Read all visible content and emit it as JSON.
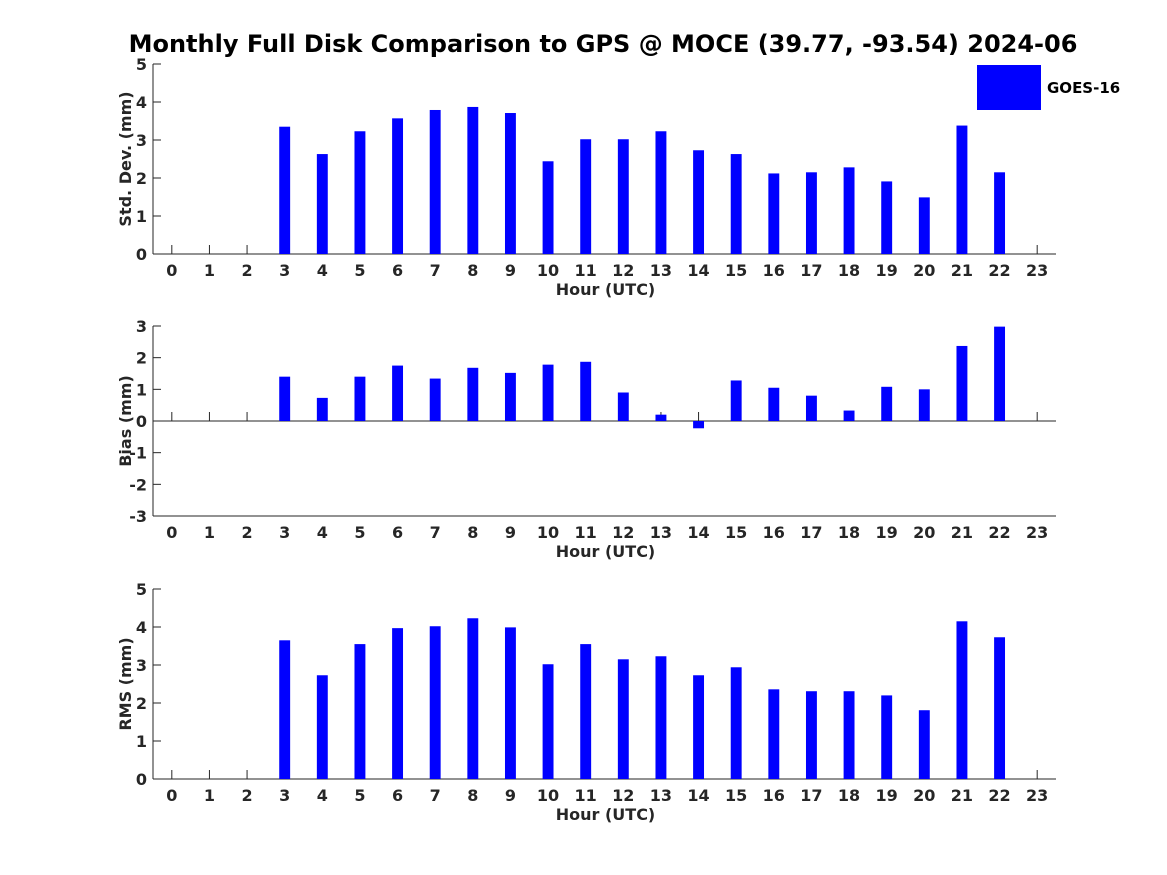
{
  "title": "Monthly Full Disk Comparison to GPS @ MOCE (39.77, -93.54) 2024-06",
  "legend": {
    "label": "GOES-16",
    "color": "#0000ff"
  },
  "chart_data": [
    {
      "type": "bar",
      "name": "std",
      "xlabel": "Hour (UTC)",
      "ylabel": "Std. Dev. (mm)",
      "ylim": [
        0,
        5
      ],
      "yticks": [
        0,
        1,
        2,
        3,
        4,
        5
      ],
      "categories": [
        "0",
        "1",
        "2",
        "3",
        "4",
        "5",
        "6",
        "7",
        "8",
        "9",
        "10",
        "11",
        "12",
        "13",
        "14",
        "15",
        "16",
        "17",
        "18",
        "19",
        "20",
        "21",
        "22",
        "23"
      ],
      "series": [
        {
          "name": "GOES-16",
          "values": [
            null,
            null,
            null,
            3.35,
            2.63,
            3.23,
            3.57,
            3.79,
            3.87,
            3.71,
            2.44,
            3.02,
            3.02,
            3.23,
            2.73,
            2.63,
            2.12,
            2.15,
            2.28,
            1.91,
            1.49,
            3.38,
            2.15,
            null
          ]
        }
      ]
    },
    {
      "type": "bar",
      "name": "bias",
      "xlabel": "Hour (UTC)",
      "ylabel": "Bias (mm)",
      "ylim": [
        -3,
        3
      ],
      "yticks": [
        -3,
        -2,
        -1,
        0,
        1,
        2,
        3
      ],
      "categories": [
        "0",
        "1",
        "2",
        "3",
        "4",
        "5",
        "6",
        "7",
        "8",
        "9",
        "10",
        "11",
        "12",
        "13",
        "14",
        "15",
        "16",
        "17",
        "18",
        "19",
        "20",
        "21",
        "22",
        "23"
      ],
      "series": [
        {
          "name": "GOES-16",
          "values": [
            null,
            null,
            null,
            1.4,
            0.73,
            1.4,
            1.75,
            1.34,
            1.68,
            1.52,
            1.78,
            1.87,
            0.9,
            0.2,
            -0.23,
            1.28,
            1.05,
            0.8,
            0.33,
            1.08,
            1.0,
            2.37,
            2.98,
            null
          ]
        }
      ]
    },
    {
      "type": "bar",
      "name": "rms",
      "xlabel": "Hour (UTC)",
      "ylabel": "RMS (mm)",
      "ylim": [
        0,
        5
      ],
      "yticks": [
        0,
        1,
        2,
        3,
        4,
        5
      ],
      "categories": [
        "0",
        "1",
        "2",
        "3",
        "4",
        "5",
        "6",
        "7",
        "8",
        "9",
        "10",
        "11",
        "12",
        "13",
        "14",
        "15",
        "16",
        "17",
        "18",
        "19",
        "20",
        "21",
        "22",
        "23"
      ],
      "series": [
        {
          "name": "GOES-16",
          "values": [
            null,
            null,
            null,
            3.65,
            2.73,
            3.55,
            3.97,
            4.02,
            4.23,
            3.99,
            3.02,
            3.55,
            3.15,
            3.23,
            2.73,
            2.94,
            2.36,
            2.31,
            2.31,
            2.2,
            1.81,
            4.15,
            3.73,
            null
          ]
        }
      ]
    }
  ]
}
